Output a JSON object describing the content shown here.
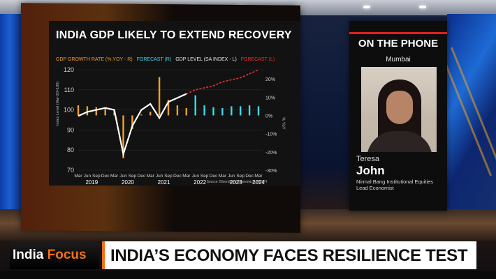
{
  "colors": {
    "accent_orange": "#f07018",
    "forecast_cyan": "#40d8e8",
    "forecast_red": "#f03030",
    "line_white": "#ffffff"
  },
  "chart": {
    "title": "INDIA GDP LIKELY TO EXTEND RECOVERY",
    "legend": [
      {
        "label": "GDP GROWTH RATE (%,YOY - R)",
        "color": "#f0a030"
      },
      {
        "label": "FORECAST (R)",
        "color": "#40d8e8"
      },
      {
        "label": "GDP LEVEL (SA INDEX - L)",
        "color": "#e8e8e8"
      },
      {
        "label": "FORECAST (L)",
        "color": "#f03030"
      }
    ],
    "source": "Source: Bloomberg Economics, MoSPI"
  },
  "chart_data": {
    "type": "bar",
    "title": "INDIA GDP LIKELY TO EXTEND RECOVERY",
    "left_axis_label": "Index Level (Mar-20=100)",
    "right_axis_label": "% YoY",
    "left_ticks": [
      "120",
      "110",
      "100",
      "90",
      "80",
      "70"
    ],
    "right_ticks": [
      "20%",
      "10%",
      "0%",
      "-10%",
      "-20%",
      "-30%"
    ],
    "ylim_left": [
      70,
      120
    ],
    "ylim_right": [
      -30,
      25
    ],
    "x_tick_labels": [
      "Mar",
      "Jun",
      "Sep",
      "Dec",
      "Mar",
      "Jun",
      "Sep",
      "Dec",
      "Mar",
      "Jun",
      "Sep",
      "Dec",
      "Mar",
      "Jun",
      "Sep",
      "Dec",
      "Mar",
      "Jun",
      "Sep",
      "Dec",
      "Mar"
    ],
    "x_year_labels": [
      "2019",
      "2020",
      "2021",
      "2022",
      "2023",
      "2024"
    ],
    "quarters": [
      "Mar-19",
      "Jun-19",
      "Sep-19",
      "Dec-19",
      "Mar-20",
      "Jun-20",
      "Sep-20",
      "Dec-20",
      "Mar-21",
      "Jun-21",
      "Sep-21",
      "Dec-21",
      "Mar-22",
      "Jun-22",
      "Sep-22",
      "Dec-22",
      "Mar-23",
      "Jun-23",
      "Sep-23",
      "Dec-23",
      "Mar-24"
    ],
    "growth_actual": [
      5.5,
      5.0,
      4.5,
      3.5,
      3.0,
      -23.5,
      -7.5,
      0.5,
      2.0,
      21.0,
      8.5,
      5.5,
      4.0,
      null,
      null,
      null,
      null,
      null,
      null,
      null,
      null
    ],
    "growth_forecast": [
      null,
      null,
      null,
      null,
      null,
      null,
      null,
      null,
      null,
      null,
      null,
      null,
      null,
      11.0,
      5.5,
      4.5,
      4.0,
      5.0,
      5.0,
      5.5,
      5.0
    ],
    "level_actual": [
      97,
      99,
      100,
      101,
      100,
      78,
      92,
      100,
      103,
      96,
      104,
      106,
      108,
      null,
      null,
      null,
      null,
      null,
      null,
      null,
      null
    ],
    "level_forecast": [
      null,
      null,
      null,
      null,
      null,
      null,
      null,
      null,
      null,
      null,
      null,
      null,
      108,
      110,
      111,
      112,
      114,
      115,
      116,
      118,
      120
    ],
    "grid": true
  },
  "guest": {
    "panel_title": "ON THE PHONE",
    "city": "Mumbai",
    "first_name": "Teresa",
    "last_name": "John",
    "org_line1": "Nirmal Bang Institutional Equities",
    "org_line2": "Lead Economist"
  },
  "lower_third": {
    "brand_part1": "India ",
    "brand_part2": "Focus",
    "headline": "INDIA’S ECONOMY FACES RESILIENCE TEST"
  }
}
